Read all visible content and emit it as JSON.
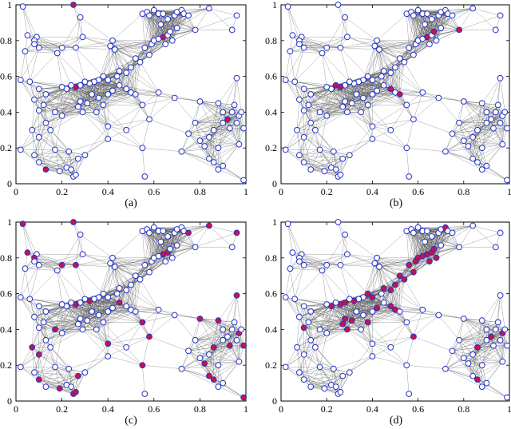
{
  "figure": {
    "panels": [
      {
        "id": "a",
        "caption": "(a)"
      },
      {
        "id": "b",
        "caption": "(b)"
      },
      {
        "id": "c",
        "caption": "(c)"
      },
      {
        "id": "d",
        "caption": "(d)"
      }
    ]
  },
  "chart_data": {
    "type": "scatter",
    "description_of_encoding": "",
    "xlim": [
      0,
      1
    ],
    "ylim": [
      0,
      1
    ],
    "xticks": [
      "0",
      "0.2",
      "0.4",
      "0.6",
      "0.8",
      "1"
    ],
    "yticks": [
      "0",
      "0.2",
      "0.4",
      "0.6",
      "0.8",
      "1"
    ],
    "grid": false,
    "colors": {
      "node_edge": "#2233cc",
      "node_fill": "#ffffff",
      "highlight_fill": "#cc1144",
      "edge": "#555555"
    },
    "connect_radius": 0.2,
    "nodes": [
      [
        0.03,
        0.99
      ],
      [
        0.25,
        1.0
      ],
      [
        0.28,
        0.93
      ],
      [
        0.05,
        0.83
      ],
      [
        0.09,
        0.82
      ],
      [
        0.08,
        0.8
      ],
      [
        0.08,
        0.78
      ],
      [
        0.1,
        0.76
      ],
      [
        0.04,
        0.74
      ],
      [
        0.02,
        0.58
      ],
      [
        0.06,
        0.57
      ],
      [
        0.2,
        0.76
      ],
      [
        0.29,
        0.82
      ],
      [
        0.18,
        0.73
      ],
      [
        0.26,
        0.76
      ],
      [
        0.42,
        0.8
      ],
      [
        0.41,
        0.77
      ],
      [
        0.43,
        0.75
      ],
      [
        0.55,
        0.95
      ],
      [
        0.57,
        0.96
      ],
      [
        0.58,
        0.94
      ],
      [
        0.6,
        0.97
      ],
      [
        0.62,
        0.95
      ],
      [
        0.64,
        0.95
      ],
      [
        0.66,
        0.92
      ],
      [
        0.69,
        0.94
      ],
      [
        0.7,
        0.96
      ],
      [
        0.72,
        0.97
      ],
      [
        0.73,
        0.95
      ],
      [
        0.75,
        0.94
      ],
      [
        0.84,
        0.98
      ],
      [
        0.96,
        0.94
      ],
      [
        0.94,
        0.86
      ],
      [
        0.78,
        0.86
      ],
      [
        0.7,
        0.87
      ],
      [
        0.63,
        0.89
      ],
      [
        0.56,
        0.76
      ],
      [
        0.59,
        0.78
      ],
      [
        0.6,
        0.8
      ],
      [
        0.62,
        0.81
      ],
      [
        0.64,
        0.82
      ],
      [
        0.66,
        0.83
      ],
      [
        0.67,
        0.85
      ],
      [
        0.65,
        0.78
      ],
      [
        0.68,
        0.8
      ],
      [
        0.58,
        0.72
      ],
      [
        0.54,
        0.68
      ],
      [
        0.52,
        0.7
      ],
      [
        0.5,
        0.65
      ],
      [
        0.48,
        0.62
      ],
      [
        0.45,
        0.63
      ],
      [
        0.44,
        0.6
      ],
      [
        0.4,
        0.58
      ],
      [
        0.38,
        0.6
      ],
      [
        0.36,
        0.58
      ],
      [
        0.34,
        0.57
      ],
      [
        0.32,
        0.56
      ],
      [
        0.3,
        0.57
      ],
      [
        0.28,
        0.55
      ],
      [
        0.26,
        0.54
      ],
      [
        0.24,
        0.55
      ],
      [
        0.22,
        0.53
      ],
      [
        0.2,
        0.54
      ],
      [
        0.1,
        0.53
      ],
      [
        0.08,
        0.47
      ],
      [
        0.13,
        0.5
      ],
      [
        0.12,
        0.44
      ],
      [
        0.1,
        0.41
      ],
      [
        0.28,
        0.46
      ],
      [
        0.27,
        0.43
      ],
      [
        0.29,
        0.4
      ],
      [
        0.31,
        0.45
      ],
      [
        0.33,
        0.5
      ],
      [
        0.36,
        0.48
      ],
      [
        0.38,
        0.44
      ],
      [
        0.4,
        0.5
      ],
      [
        0.42,
        0.52
      ],
      [
        0.45,
        0.55
      ],
      [
        0.48,
        0.53
      ],
      [
        0.5,
        0.51
      ],
      [
        0.52,
        0.5
      ],
      [
        0.55,
        0.44
      ],
      [
        0.58,
        0.36
      ],
      [
        0.62,
        0.51
      ],
      [
        0.69,
        0.48
      ],
      [
        0.48,
        0.3
      ],
      [
        0.35,
        0.4
      ],
      [
        0.17,
        0.4
      ],
      [
        0.2,
        0.38
      ],
      [
        0.13,
        0.34
      ],
      [
        0.15,
        0.3
      ],
      [
        0.07,
        0.3
      ],
      [
        0.1,
        0.26
      ],
      [
        0.02,
        0.19
      ],
      [
        0.08,
        0.16
      ],
      [
        0.1,
        0.12
      ],
      [
        0.17,
        0.19
      ],
      [
        0.13,
        0.08
      ],
      [
        0.19,
        0.07
      ],
      [
        0.22,
        0.09
      ],
      [
        0.24,
        0.08
      ],
      [
        0.25,
        0.04
      ],
      [
        0.26,
        0.05
      ],
      [
        0.27,
        0.14
      ],
      [
        0.3,
        0.16
      ],
      [
        0.23,
        0.18
      ],
      [
        0.4,
        0.25
      ],
      [
        0.4,
        0.32
      ],
      [
        0.55,
        0.2
      ],
      [
        0.56,
        0.04
      ],
      [
        0.72,
        0.18
      ],
      [
        0.75,
        0.28
      ],
      [
        0.78,
        0.34
      ],
      [
        0.8,
        0.24
      ],
      [
        0.82,
        0.21
      ],
      [
        0.84,
        0.26
      ],
      [
        0.86,
        0.3
      ],
      [
        0.84,
        0.14
      ],
      [
        0.86,
        0.12
      ],
      [
        0.88,
        0.08
      ],
      [
        0.9,
        0.1
      ],
      [
        0.88,
        0.2
      ],
      [
        0.9,
        0.34
      ],
      [
        0.92,
        0.36
      ],
      [
        0.94,
        0.4
      ],
      [
        0.95,
        0.44
      ],
      [
        0.97,
        0.38
      ],
      [
        0.98,
        0.4
      ],
      [
        0.96,
        0.34
      ],
      [
        0.99,
        0.31
      ],
      [
        0.97,
        0.22
      ],
      [
        0.96,
        0.59
      ],
      [
        0.99,
        0.02
      ],
      [
        0.88,
        0.45
      ],
      [
        0.8,
        0.46
      ],
      [
        0.9,
        0.4
      ],
      [
        0.93,
        0.31
      ]
    ],
    "highlighted": {
      "a": [
        1,
        40,
        59,
        97,
        123
      ],
      "b": [
        33,
        40,
        42,
        59,
        60,
        78,
        80
      ],
      "c": [
        0,
        1,
        3,
        5,
        11,
        14,
        29,
        30,
        31,
        40,
        41,
        56,
        59,
        77,
        81,
        82,
        87,
        91,
        92,
        95,
        98,
        101,
        102,
        103,
        107,
        108,
        114,
        116,
        117,
        118,
        126,
        129,
        131,
        132,
        133,
        134,
        136
      ],
      "d": [
        27,
        36,
        37,
        38,
        39,
        40,
        41,
        42,
        43,
        44,
        45,
        46,
        47,
        48,
        49,
        50,
        52,
        53,
        56,
        58,
        59,
        61,
        67,
        68,
        69,
        70,
        71,
        74,
        76,
        78,
        79,
        82,
        116,
        118,
        123,
        126
      ]
    }
  }
}
